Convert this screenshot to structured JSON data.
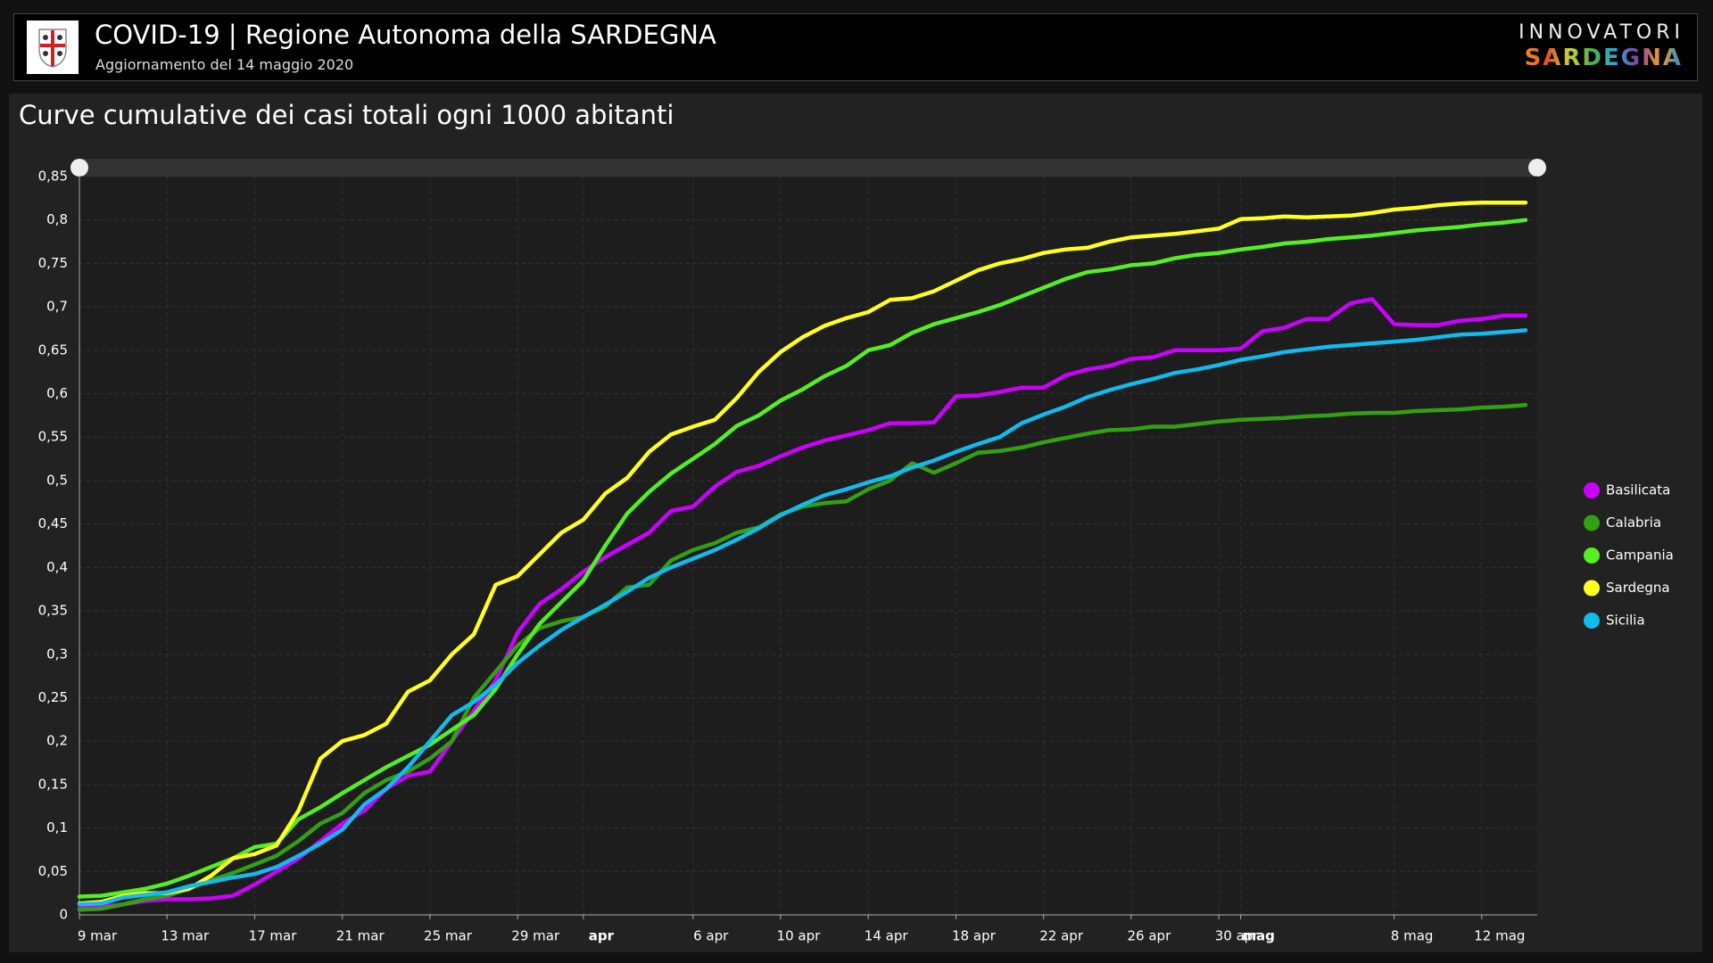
{
  "header": {
    "title": "COVID-19 | Regione Autonoma della SARDEGNA",
    "subtitle": "Aggiornamento del 14 maggio 2020",
    "brand_top": "INNOVATORI",
    "brand_bottom": "SARDEGNA"
  },
  "chart_data": {
    "type": "line",
    "title": "Curve cumulative dei casi totali ogni 1000 abitanti",
    "categories": [
      "9 mar",
      null,
      null,
      null,
      "13 mar",
      null,
      null,
      null,
      "17 mar",
      null,
      null,
      null,
      "21 mar",
      null,
      null,
      null,
      "25 mar",
      null,
      null,
      null,
      "29 mar",
      null,
      null,
      "apr",
      null,
      null,
      null,
      null,
      "6 apr",
      null,
      null,
      null,
      "10 apr",
      null,
      null,
      null,
      "14 apr",
      null,
      null,
      null,
      "18 apr",
      null,
      null,
      null,
      "22 apr",
      null,
      null,
      null,
      "26 apr",
      null,
      null,
      null,
      "30 apr",
      "mag",
      null,
      null,
      null,
      null,
      null,
      null,
      "8 mag",
      null,
      null,
      null,
      "12 mag",
      null,
      null
    ],
    "series": [
      {
        "name": "Basilicata",
        "color": "#cc00ff",
        "values": [
          0.008,
          0.01,
          0.012,
          0.016,
          0.018,
          0.018,
          0.019,
          0.022,
          0.035,
          0.05,
          0.065,
          0.085,
          0.105,
          0.12,
          0.145,
          0.16,
          0.165,
          0.2,
          0.235,
          0.27,
          0.325,
          0.358,
          0.375,
          0.395,
          0.412,
          0.426,
          0.44,
          0.465,
          0.47,
          0.493,
          0.51,
          0.517,
          0.528,
          0.538,
          0.546,
          0.552,
          0.558,
          0.566,
          0.566,
          0.567,
          0.597,
          0.598,
          0.602,
          0.607,
          0.607,
          0.621,
          0.628,
          0.632,
          0.64,
          0.642,
          0.65,
          0.65,
          0.65,
          0.652,
          0.672,
          0.676,
          0.686,
          0.686,
          0.704,
          0.709,
          0.68,
          0.679,
          0.679,
          0.684,
          0.686,
          0.69,
          0.69
        ]
      },
      {
        "name": "Calabria",
        "color": "#33a012",
        "values": [
          0.006,
          0.007,
          0.012,
          0.018,
          0.022,
          0.03,
          0.04,
          0.048,
          0.058,
          0.068,
          0.085,
          0.105,
          0.117,
          0.14,
          0.155,
          0.165,
          0.18,
          0.2,
          0.25,
          0.28,
          0.31,
          0.33,
          0.338,
          0.343,
          0.355,
          0.377,
          0.38,
          0.408,
          0.42,
          0.428,
          0.44,
          0.446,
          0.461,
          0.47,
          0.474,
          0.476,
          0.49,
          0.5,
          0.52,
          0.509,
          0.52,
          0.532,
          0.534,
          0.538,
          0.544,
          0.549,
          0.554,
          0.558,
          0.559,
          0.562,
          0.562,
          0.565,
          0.568,
          0.57,
          0.571,
          0.572,
          0.574,
          0.575,
          0.577,
          0.578,
          0.578,
          0.58,
          0.581,
          0.582,
          0.584,
          0.585,
          0.587
        ]
      },
      {
        "name": "Campania",
        "color": "#55ee22",
        "values": [
          0.021,
          0.022,
          0.026,
          0.03,
          0.036,
          0.045,
          0.055,
          0.065,
          0.078,
          0.082,
          0.11,
          0.124,
          0.14,
          0.155,
          0.17,
          0.183,
          0.196,
          0.213,
          0.23,
          0.26,
          0.3,
          0.335,
          0.36,
          0.385,
          0.425,
          0.462,
          0.487,
          0.508,
          0.525,
          0.542,
          0.563,
          0.575,
          0.592,
          0.605,
          0.62,
          0.632,
          0.65,
          0.656,
          0.67,
          0.68,
          0.687,
          0.694,
          0.702,
          0.712,
          0.722,
          0.732,
          0.74,
          0.743,
          0.748,
          0.75,
          0.756,
          0.76,
          0.762,
          0.766,
          0.769,
          0.773,
          0.775,
          0.778,
          0.78,
          0.782,
          0.785,
          0.788,
          0.79,
          0.792,
          0.795,
          0.797,
          0.8
        ]
      },
      {
        "name": "Sardegna",
        "color": "#ffff22",
        "values": [
          0.013,
          0.015,
          0.022,
          0.025,
          0.025,
          0.03,
          0.045,
          0.065,
          0.07,
          0.08,
          0.12,
          0.18,
          0.2,
          0.207,
          0.22,
          0.257,
          0.27,
          0.3,
          0.323,
          0.38,
          0.39,
          0.415,
          0.44,
          0.455,
          0.485,
          0.503,
          0.533,
          0.553,
          0.562,
          0.57,
          0.595,
          0.625,
          0.648,
          0.665,
          0.678,
          0.687,
          0.694,
          0.708,
          0.71,
          0.718,
          0.73,
          0.742,
          0.75,
          0.755,
          0.762,
          0.766,
          0.768,
          0.775,
          0.78,
          0.782,
          0.784,
          0.787,
          0.79,
          0.801,
          0.802,
          0.804,
          0.803,
          0.804,
          0.805,
          0.808,
          0.812,
          0.814,
          0.817,
          0.819,
          0.82,
          0.82,
          0.82
        ]
      },
      {
        "name": "Sicilia",
        "color": "#11bbee",
        "values": [
          0.012,
          0.013,
          0.02,
          0.023,
          0.026,
          0.033,
          0.038,
          0.043,
          0.047,
          0.055,
          0.068,
          0.082,
          0.098,
          0.127,
          0.145,
          0.17,
          0.2,
          0.23,
          0.245,
          0.265,
          0.29,
          0.31,
          0.328,
          0.343,
          0.357,
          0.372,
          0.388,
          0.4,
          0.41,
          0.42,
          0.432,
          0.445,
          0.46,
          0.472,
          0.483,
          0.49,
          0.498,
          0.505,
          0.515,
          0.523,
          0.533,
          0.542,
          0.55,
          0.566,
          0.576,
          0.585,
          0.596,
          0.604,
          0.611,
          0.617,
          0.624,
          0.628,
          0.633,
          0.639,
          0.643,
          0.648,
          0.651,
          0.654,
          0.656,
          0.658,
          0.66,
          0.662,
          0.665,
          0.668,
          0.669,
          0.671,
          0.673
        ]
      }
    ],
    "ylim": [
      0,
      0.85
    ],
    "yticks": [
      0,
      {
        "value": 0.05,
        "label": "0,05"
      },
      {
        "value": 0.1,
        "label": "0,1"
      },
      {
        "value": 0.15,
        "label": "0,15"
      },
      {
        "value": 0.2,
        "label": "0,2"
      },
      {
        "value": 0.25,
        "label": "0,25"
      },
      {
        "value": 0.3,
        "label": "0,3"
      },
      {
        "value": 0.35,
        "label": "0,35"
      },
      {
        "value": 0.4,
        "label": "0,4"
      },
      {
        "value": 0.45,
        "label": "0,45"
      },
      {
        "value": 0.5,
        "label": "0,5"
      },
      {
        "value": 0.55,
        "label": "0,55"
      },
      {
        "value": 0.6,
        "label": "0,6"
      },
      {
        "value": 0.65,
        "label": "0,65"
      },
      {
        "value": 0.7,
        "label": "0,7"
      },
      {
        "value": 0.75,
        "label": "0,75"
      },
      {
        "value": 0.8,
        "label": "0,8"
      },
      {
        "value": 0.85,
        "label": "0,85"
      }
    ],
    "grid": true,
    "legend": "right"
  }
}
